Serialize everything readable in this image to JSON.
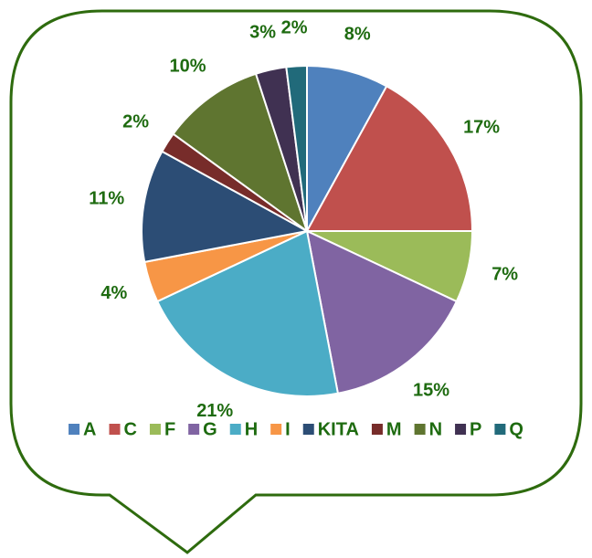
{
  "chart_data": {
    "type": "pie",
    "categories": [
      "A",
      "C",
      "F",
      "G",
      "H",
      "I",
      "KITA",
      "M",
      "N",
      "P",
      "Q"
    ],
    "values": [
      8,
      17,
      7,
      15,
      21,
      4,
      11,
      2,
      10,
      3,
      2
    ],
    "value_labels": [
      "8%",
      "17%",
      "7%",
      "15%",
      "21%",
      "4%",
      "11%",
      "2%",
      "10%",
      "3%",
      "2%"
    ],
    "colors": [
      "#4f81bd",
      "#c0504d",
      "#9bbb59",
      "#8064a2",
      "#4bacc6",
      "#f79646",
      "#2c4d75",
      "#772c2a",
      "#5f7530",
      "#403152",
      "#216a7a"
    ],
    "legend": "bottom"
  }
}
